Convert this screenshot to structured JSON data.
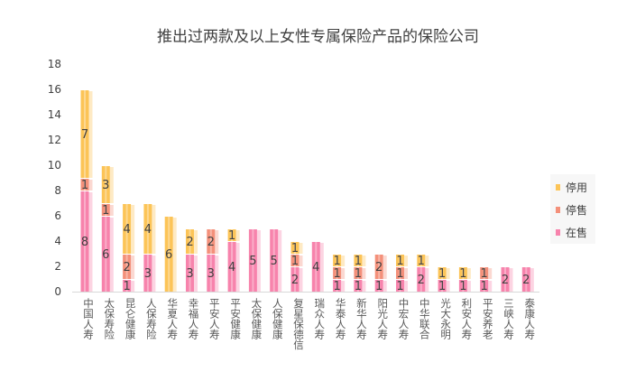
{
  "chart_data": {
    "type": "bar",
    "stacked": true,
    "title": "推出过两款及以上女性专属保险产品的保险公司",
    "categories": [
      "中国人寿",
      "太保寿险",
      "昆仑健康",
      "人保寿险",
      "华夏人寿",
      "幸福人寿",
      "平安人寿",
      "平安健康",
      "太保健康",
      "人保健康",
      "复星保德信",
      "瑞众人寿",
      "华泰人寿",
      "新华人寿",
      "阳光人寿",
      "中宏人寿",
      "中华联合",
      "光大永明",
      "利安人寿",
      "平安养老",
      "三峡人寿",
      "泰康人寿"
    ],
    "series": [
      {
        "name": "在售",
        "color": "#f783ac",
        "values": [
          8,
          6,
          1,
          3,
          0,
          3,
          3,
          4,
          5,
          5,
          2,
          4,
          1,
          1,
          1,
          1,
          2,
          1,
          1,
          1,
          2,
          2
        ]
      },
      {
        "name": "停售",
        "color": "#f4907a",
        "values": [
          1,
          1,
          2,
          0,
          0,
          0,
          2,
          0,
          0,
          0,
          1,
          0,
          1,
          1,
          2,
          1,
          0,
          0,
          0,
          1,
          0,
          0
        ]
      },
      {
        "name": "停用",
        "color": "#fcc457",
        "values": [
          7,
          3,
          4,
          4,
          6,
          2,
          0,
          1,
          0,
          0,
          1,
          0,
          1,
          1,
          0,
          1,
          1,
          1,
          1,
          0,
          0,
          0
        ]
      }
    ],
    "ylim": [
      0,
      18
    ],
    "yticks": [
      0,
      2,
      4,
      6,
      8,
      10,
      12,
      14,
      16,
      18
    ],
    "grid": false,
    "legend": "right",
    "data_labels": true
  }
}
